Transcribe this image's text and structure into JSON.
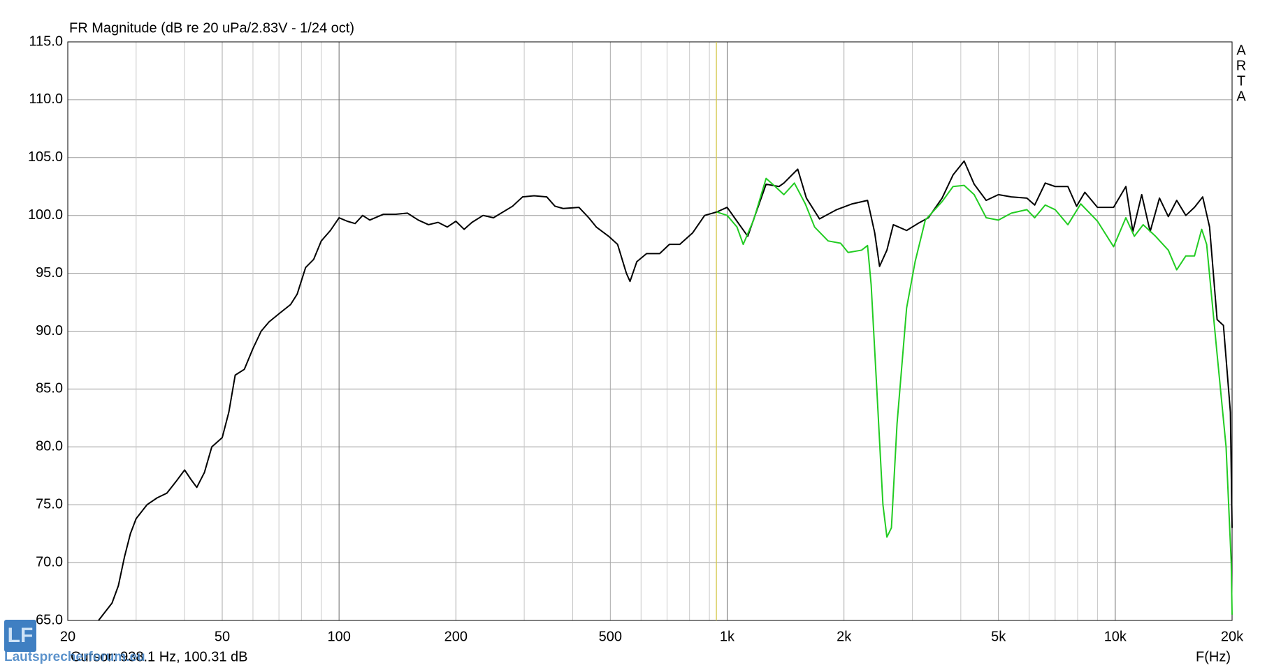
{
  "chart_data": {
    "type": "line",
    "title": "FR Magnitude (dB re 20 uPa/2.83V - 1/24 oct)",
    "brand": [
      "A",
      "R",
      "T",
      "A"
    ],
    "x_label": "F(Hz)",
    "cursor": {
      "label": "Cursor: 938.1 Hz, 100.31 dB",
      "frequency": 938.1,
      "color": "#d4c84a"
    },
    "watermark": "Lautsprecherforum.eu",
    "x_log": true,
    "grid": true,
    "xlim": [
      20,
      20000
    ],
    "ylim": [
      65,
      115
    ],
    "xticks": [
      20,
      50,
      100,
      200,
      500,
      {
        "value": 1000,
        "label": "1k"
      },
      {
        "value": 2000,
        "label": "2k"
      },
      {
        "value": 5000,
        "label": "5k"
      },
      {
        "value": 10000,
        "label": "10k"
      },
      {
        "value": 20000,
        "label": "20k"
      }
    ],
    "xgrid_minor": [
      30,
      40,
      60,
      70,
      80,
      90,
      300,
      400,
      600,
      700,
      800,
      900,
      3000,
      4000,
      6000,
      7000,
      8000,
      9000
    ],
    "yticks": [
      {
        "value": 65,
        "label": "65.0"
      },
      {
        "value": 70,
        "label": "70.0"
      },
      {
        "value": 75,
        "label": "75.0"
      },
      {
        "value": 80,
        "label": "80.0"
      },
      {
        "value": 85,
        "label": "85.0"
      },
      {
        "value": 90,
        "label": "90.0"
      },
      {
        "value": 95,
        "label": "95.0"
      },
      {
        "value": 100,
        "label": "100.0"
      },
      {
        "value": 105,
        "label": "105.0"
      },
      {
        "value": 110,
        "label": "110.0"
      },
      {
        "value": 115,
        "label": "115.0"
      }
    ],
    "series": [
      {
        "color": "#000000",
        "x": [
          24,
          26,
          27,
          28,
          29,
          30,
          32,
          34,
          36,
          38,
          40,
          41.5,
          43,
          45,
          47,
          50,
          52,
          54,
          57,
          60,
          63,
          66,
          70,
          75,
          78,
          82,
          86,
          90,
          95,
          100,
          105,
          110,
          115,
          120,
          130,
          140,
          150,
          160,
          170,
          180,
          190,
          200,
          210,
          220,
          235,
          250,
          280,
          297,
          318,
          343,
          360,
          378,
          415,
          440,
          460,
          495,
          522,
          550,
          562,
          585,
          620,
          670,
          710,
          755,
          815,
          875,
          940,
          1000,
          1060,
          1130,
          1180,
          1260,
          1360,
          1400,
          1520,
          1600,
          1730,
          1915,
          2100,
          2300,
          2400,
          2470,
          2580,
          2680,
          2900,
          3100,
          3300,
          3580,
          3820,
          4080,
          4330,
          4650,
          5000,
          5400,
          5920,
          6200,
          6600,
          7000,
          7550,
          7950,
          8350,
          9000,
          9900,
          10650,
          11100,
          11700,
          12300,
          13000,
          13700,
          14400,
          15200,
          16000,
          16800,
          17500,
          18300,
          19000,
          19800,
          20000
        ],
        "values": [
          65,
          66.5,
          68,
          70.5,
          72.5,
          73.8,
          75,
          75.6,
          76,
          77,
          78,
          77.2,
          76.5,
          77.8,
          80,
          80.8,
          83,
          86.2,
          86.7,
          88.5,
          90,
          90.8,
          91.5,
          92.3,
          93.2,
          95.5,
          96.2,
          97.8,
          98.7,
          99.8,
          99.5,
          99.3,
          100,
          99.6,
          100.1,
          100.1,
          100.2,
          99.6,
          99.2,
          99.4,
          99,
          99.5,
          98.8,
          99.4,
          100,
          99.8,
          100.8,
          101.6,
          101.7,
          101.6,
          100.8,
          100.6,
          100.7,
          99.8,
          99,
          98.2,
          97.5,
          95,
          94.3,
          96,
          96.7,
          96.7,
          97.5,
          97.5,
          98.5,
          100,
          100.3,
          100.7,
          99.5,
          98.2,
          100,
          102.7,
          102.5,
          102.8,
          104,
          101.5,
          99.7,
          100.5,
          101,
          101.3,
          98.5,
          95.6,
          97,
          99.2,
          98.7,
          99.3,
          99.8,
          101.5,
          103.5,
          104.7,
          102.7,
          101.3,
          101.8,
          101.6,
          101.5,
          100.9,
          102.8,
          102.5,
          102.5,
          100.8,
          102,
          100.7,
          100.7,
          102.5,
          98.6,
          101.8,
          98.6,
          101.5,
          99.9,
          101.3,
          100,
          100.7,
          101.6,
          99,
          91,
          90.5,
          83,
          73
        ]
      },
      {
        "color": "#22cc22",
        "x": [
          940,
          1000,
          1060,
          1100,
          1170,
          1260,
          1330,
          1400,
          1490,
          1590,
          1680,
          1820,
          1960,
          2050,
          2220,
          2300,
          2350,
          2430,
          2520,
          2580,
          2650,
          2740,
          2900,
          3050,
          3240,
          3580,
          3820,
          4080,
          4330,
          4650,
          5000,
          5400,
          5920,
          6200,
          6600,
          7000,
          7550,
          8150,
          9000,
          9900,
          10650,
          11200,
          11800,
          12700,
          13700,
          14400,
          15200,
          16000,
          16700,
          17200,
          18300,
          19300,
          19900,
          20000
        ],
        "values": [
          100.3,
          100,
          99,
          97.5,
          99.6,
          103.2,
          102.5,
          101.8,
          102.8,
          101,
          99,
          97.8,
          97.6,
          96.8,
          97,
          97.4,
          94,
          85,
          75,
          72.2,
          73,
          82,
          92,
          96,
          99.6,
          101.2,
          102.5,
          102.6,
          101.8,
          99.8,
          99.6,
          100.2,
          100.5,
          99.8,
          100.9,
          100.5,
          99.2,
          101,
          99.5,
          97.3,
          99.8,
          98.2,
          99.2,
          98.2,
          97,
          95.3,
          96.5,
          96.5,
          98.8,
          97.5,
          88,
          80,
          70,
          65.5
        ]
      }
    ]
  }
}
